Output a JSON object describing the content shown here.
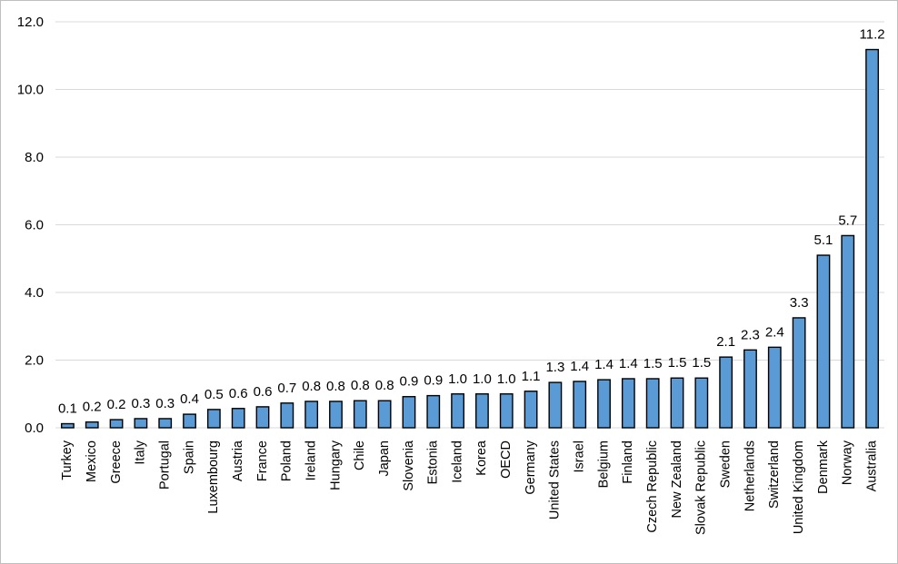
{
  "chart_data": {
    "type": "bar",
    "title": "",
    "xlabel": "",
    "ylabel": "",
    "ylim": [
      0,
      12
    ],
    "yticks": [
      "0.0",
      "2.0",
      "4.0",
      "6.0",
      "8.0",
      "10.0",
      "12.0"
    ],
    "grid": "horizontal",
    "legend": "none",
    "bar_color": "#5b9bd5",
    "bar_outline_color": "#000000",
    "categories": [
      "Turkey",
      "Mexico",
      "Greece",
      "Italy",
      "Portugal",
      "Spain",
      "Luxembourg",
      "Austria",
      "France",
      "Poland",
      "Ireland",
      "Hungary",
      "Chile",
      "Japan",
      "Slovenia",
      "Estonia",
      "Iceland",
      "Korea",
      "OECD",
      "Germany",
      "United States",
      "Israel",
      "Belgium",
      "Finland",
      "Czech Republic",
      "New Zealand",
      "Slovak Republic",
      "Sweden",
      "Netherlands",
      "Switzerland",
      "United Kingdom",
      "Denmark",
      "Norway",
      "Australia"
    ],
    "values": [
      0.12,
      0.17,
      0.24,
      0.27,
      0.27,
      0.4,
      0.54,
      0.57,
      0.62,
      0.73,
      0.78,
      0.78,
      0.8,
      0.8,
      0.92,
      0.95,
      1.0,
      1.0,
      1.0,
      1.08,
      1.34,
      1.37,
      1.42,
      1.45,
      1.45,
      1.47,
      1.47,
      2.09,
      2.3,
      2.38,
      3.25,
      5.1,
      5.68,
      11.18
    ],
    "data_labels": [
      "0.1",
      "0.2",
      "0.2",
      "0.3",
      "0.3",
      "0.4",
      "0.5",
      "0.6",
      "0.6",
      "0.7",
      "0.8",
      "0.8",
      "0.8",
      "0.8",
      "0.9",
      "0.9",
      "1.0",
      "1.0",
      "1.0",
      "1.1",
      "1.3",
      "1.4",
      "1.4",
      "1.4",
      "1.5",
      "1.5",
      "1.5",
      "2.1",
      "2.3",
      "2.4",
      "3.3",
      "5.1",
      "5.7",
      "11.2"
    ]
  }
}
